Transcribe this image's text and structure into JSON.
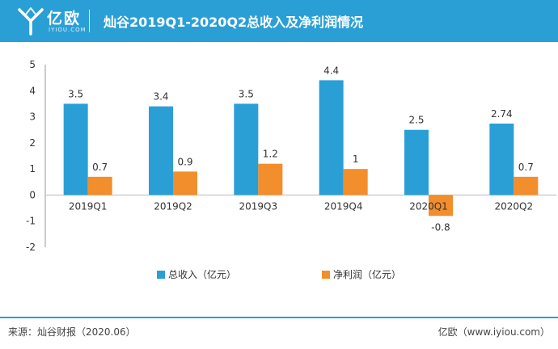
{
  "header": {
    "logo_text": "亿欧",
    "logo_sub": "IYIOU.COM",
    "title": "灿谷2019Q1-2020Q2总收入及净利润情况"
  },
  "colors": {
    "header_bg": "#2a9fd6",
    "revenue": "#2a9fd6",
    "profit": "#f28e2b"
  },
  "chart_data": {
    "type": "bar",
    "categories": [
      "2019Q1",
      "2019Q2",
      "2019Q3",
      "2019Q4",
      "2020Q1",
      "2020Q2"
    ],
    "series": [
      {
        "name": "总收入（亿元）",
        "values": [
          3.5,
          3.4,
          3.5,
          4.4,
          2.5,
          2.74
        ],
        "labels": [
          "3.5",
          "3.4",
          "3.5",
          "4.4",
          "2.5",
          "2.74"
        ]
      },
      {
        "name": "净利润（亿元）",
        "values": [
          0.7,
          0.9,
          1.2,
          1,
          -0.8,
          0.7
        ],
        "labels": [
          "0.7",
          "0.9",
          "1.2",
          "1",
          "-0.8",
          "0.7"
        ]
      }
    ],
    "ylim": [
      -2,
      5
    ],
    "yticks": [
      "5",
      "4",
      "3",
      "2",
      "1",
      "0",
      "-1",
      "-2"
    ],
    "legend_position": "bottom",
    "grid": false
  },
  "footer": {
    "source": "来源：灿谷财报（2020.06）",
    "credit": "亿欧（www.iyiou.com）"
  }
}
